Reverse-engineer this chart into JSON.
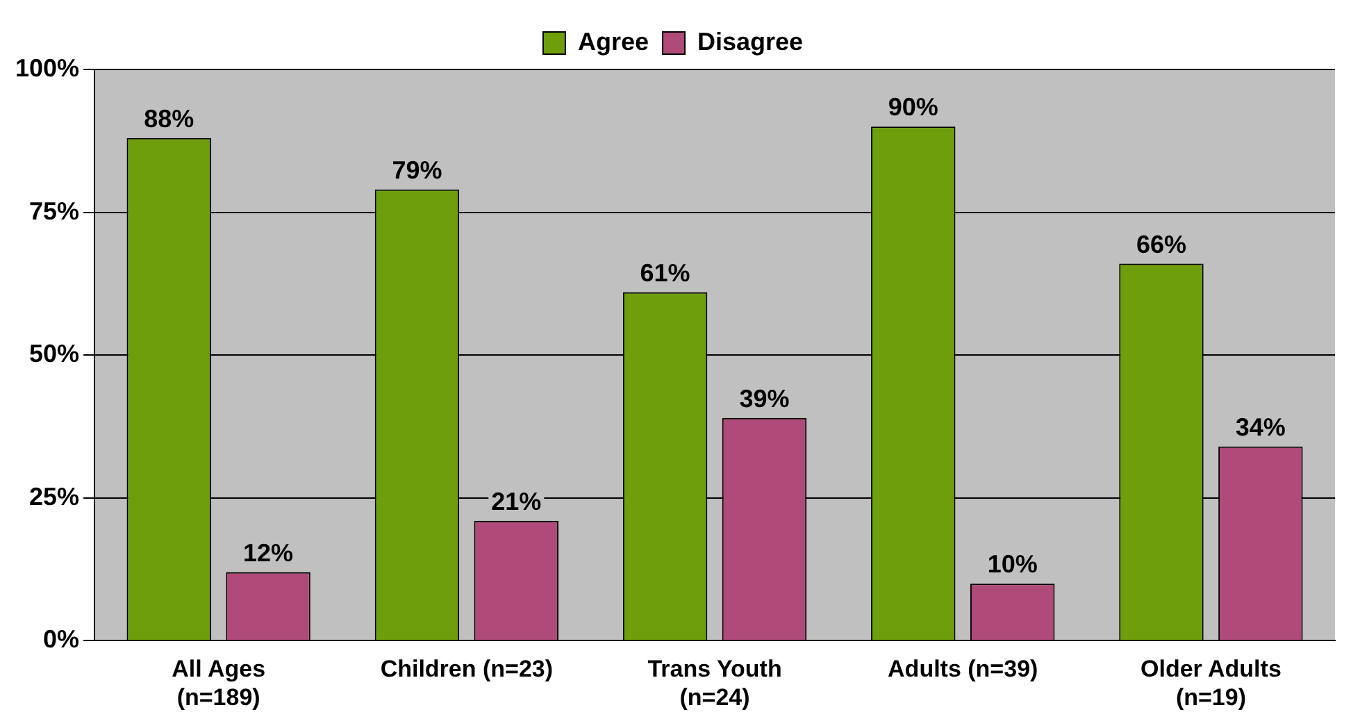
{
  "chart_data": {
    "type": "bar",
    "categories": [
      "All Ages (n=189)",
      "Children (n=23)",
      "Trans Youth (n=24)",
      "Adults (n=39)",
      "Older Adults (n=19)"
    ],
    "series": [
      {
        "name": "Agree",
        "color": "#6e9e0c",
        "values": [
          88,
          79,
          61,
          90,
          66
        ],
        "value_labels": [
          "88%",
          "79%",
          "61%",
          "90%",
          "66%"
        ]
      },
      {
        "name": "Disagree",
        "color": "#b04a78",
        "values": [
          12,
          21,
          39,
          10,
          34
        ],
        "value_labels": [
          "12%",
          "21%",
          "39%",
          "10%",
          "34%"
        ]
      }
    ],
    "ylim": [
      0,
      100
    ],
    "yticks": [
      {
        "value": 0,
        "label": "0%"
      },
      {
        "value": 25,
        "label": "25%"
      },
      {
        "value": 50,
        "label": "50%"
      },
      {
        "value": 75,
        "label": "75%"
      },
      {
        "value": 100,
        "label": "100%"
      }
    ],
    "grid": "y",
    "legend": "top"
  }
}
